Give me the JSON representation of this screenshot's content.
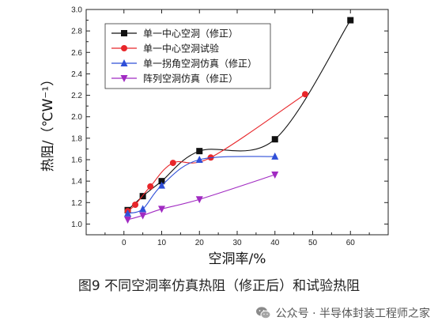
{
  "caption": "图9 不同空洞率仿真热阻（修正后）和试验热阻",
  "watermark": "公众号 · 半导体封装工程师之家",
  "watermark_icon": "wechat-icon",
  "chart_data": {
    "type": "line",
    "title": "",
    "xlabel": "空洞率/%",
    "ylabel": "热阻/（℃W⁻¹）",
    "xlim": [
      -10,
      70
    ],
    "ylim": [
      0.9,
      3.0
    ],
    "xticks": [
      0,
      10,
      20,
      30,
      40,
      50,
      60
    ],
    "yticks": [
      1.0,
      1.2,
      1.4,
      1.6,
      1.8,
      2.0,
      2.2,
      2.4,
      2.6,
      2.8,
      3.0
    ],
    "grid": false,
    "legend_position": "top-left",
    "series": [
      {
        "name": "单一中心空洞（修正）",
        "color": "#111111",
        "marker": "square",
        "x": [
          1,
          5,
          10,
          20,
          40,
          60
        ],
        "y": [
          1.13,
          1.26,
          1.4,
          1.68,
          1.79,
          2.9
        ]
      },
      {
        "name": "单一中心空洞试验",
        "color": "#e8262a",
        "marker": "circle",
        "x": [
          1,
          3,
          7,
          13,
          23,
          48
        ],
        "y": [
          1.12,
          1.18,
          1.35,
          1.57,
          1.62,
          2.21
        ]
      },
      {
        "name": "单一拐角空洞仿真（修正）",
        "color": "#2f4fd8",
        "marker": "triangle-up",
        "x": [
          1,
          5,
          10,
          20,
          40
        ],
        "y": [
          1.1,
          1.14,
          1.36,
          1.6,
          1.63
        ]
      },
      {
        "name": "阵列空洞仿真（修正）",
        "color": "#a12bc2",
        "marker": "triangle-down",
        "x": [
          1,
          5,
          10,
          20,
          40
        ],
        "y": [
          1.04,
          1.08,
          1.14,
          1.23,
          1.46
        ]
      }
    ]
  }
}
